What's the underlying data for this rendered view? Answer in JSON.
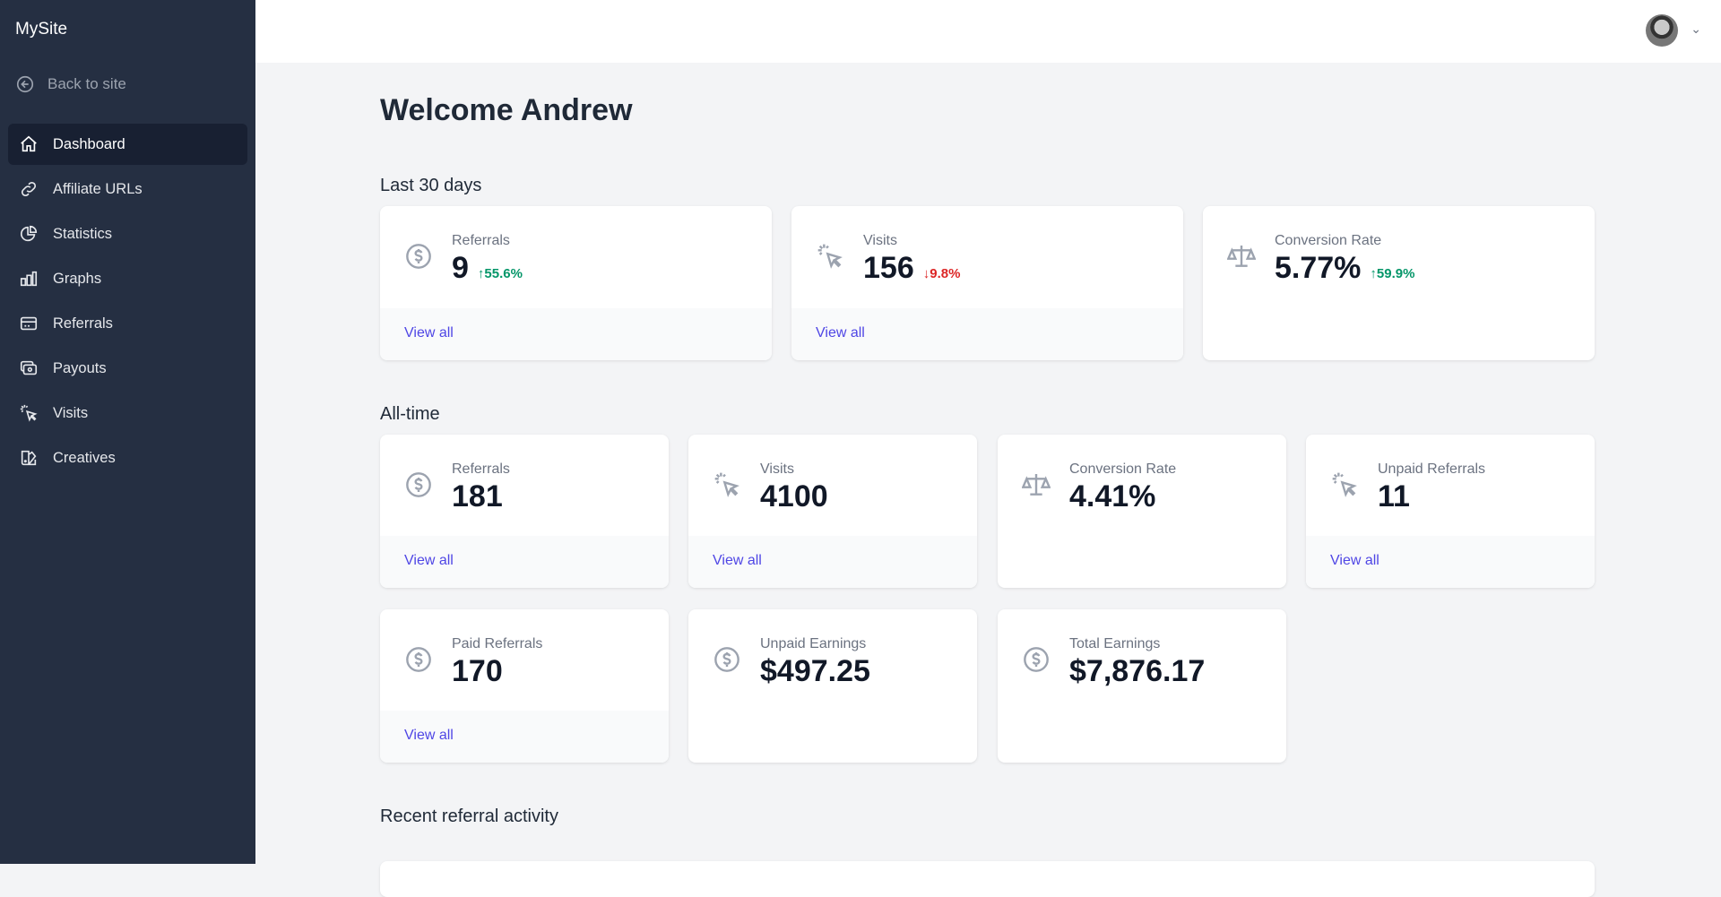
{
  "sidebar": {
    "brand": "MySite",
    "back": "Back to site",
    "items": [
      {
        "label": "Dashboard",
        "icon": "home-icon"
      },
      {
        "label": "Affiliate URLs",
        "icon": "link-icon"
      },
      {
        "label": "Statistics",
        "icon": "pie-chart-icon"
      },
      {
        "label": "Graphs",
        "icon": "bar-chart-icon"
      },
      {
        "label": "Referrals",
        "icon": "credit-card-icon"
      },
      {
        "label": "Payouts",
        "icon": "cash-icon"
      },
      {
        "label": "Visits",
        "icon": "cursor-click-icon"
      },
      {
        "label": "Creatives",
        "icon": "color-swatch-icon"
      }
    ]
  },
  "header": {
    "user_menu": "user-avatar"
  },
  "main": {
    "title": "Welcome Andrew",
    "last30": {
      "heading": "Last 30 days",
      "cards": [
        {
          "label": "Referrals",
          "value": "9",
          "change": "55.6%",
          "dir": "up",
          "link": "View all"
        },
        {
          "label": "Visits",
          "value": "156",
          "change": "9.8%",
          "dir": "down",
          "link": "View all"
        },
        {
          "label": "Conversion Rate",
          "value": "5.77%",
          "change": "59.9%",
          "dir": "up"
        }
      ]
    },
    "alltime": {
      "heading": "All-time",
      "cards": [
        {
          "label": "Referrals",
          "value": "181",
          "link": "View all"
        },
        {
          "label": "Visits",
          "value": "4100",
          "link": "View all"
        },
        {
          "label": "Conversion Rate",
          "value": "4.41%"
        },
        {
          "label": "Unpaid Referrals",
          "value": "11",
          "link": "View all"
        },
        {
          "label": "Paid Referrals",
          "value": "170",
          "link": "View all"
        },
        {
          "label": "Unpaid Earnings",
          "value": "$497.25"
        },
        {
          "label": "Total Earnings",
          "value": "$7,876.17"
        }
      ]
    },
    "recent_heading": "Recent referral activity"
  },
  "colors": {
    "sidebar": "#252f42",
    "accent": "#4f46e5",
    "up": "#059669",
    "down": "#dc2626"
  }
}
